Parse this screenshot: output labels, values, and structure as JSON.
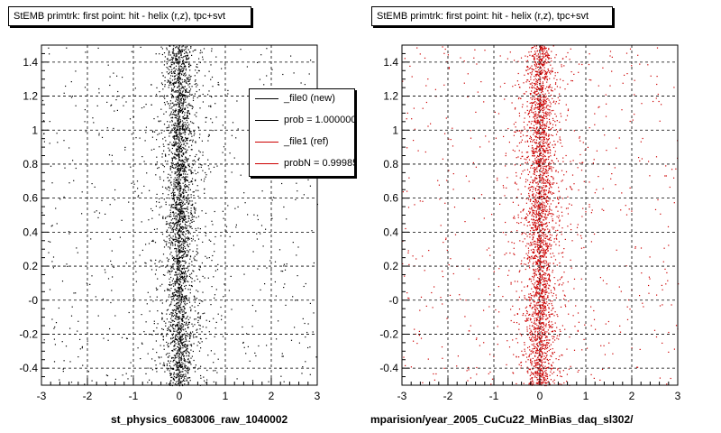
{
  "colors": {
    "new": "#000000",
    "ref": "#cc0000",
    "grid": "#000000",
    "frame": "#000000"
  },
  "left_panel": {
    "title": "StEMB primtrk: first point: hit - helix (r,z), tpc+svt",
    "x_name": "st_physics_6083006_raw_1040002"
  },
  "right_panel": {
    "title": "StEMB primtrk: first point: hit - helix (r,z), tpc+svt",
    "x_name": "mparision/year_2005_CuCu22_MinBias_daq_sl302/"
  },
  "legend": {
    "entries": [
      {
        "label": "_file0 (new)",
        "color": "#000000"
      },
      {
        "label": "prob = 1.000000",
        "color": "#000000"
      },
      {
        "label": "_file1 (ref)",
        "color": "#cc0000"
      },
      {
        "label": "probN = 0.99985",
        "color": "#cc0000"
      }
    ]
  },
  "footer": "",
  "chart_data": [
    {
      "type": "scatter",
      "title": "StEMB primtrk: first point: hit - helix (r,z), tpc+svt",
      "xlabel": "st_physics_6083006_raw_1040002",
      "ylabel": "",
      "xlim": [
        -3,
        3
      ],
      "ylim": [
        -0.5,
        1.5
      ],
      "grid": true,
      "x_ticks": [
        "-3",
        "-2",
        "-1",
        "0",
        "1",
        "2",
        "3"
      ],
      "y_ticks": [
        "-0.4",
        "-0.2",
        "-0",
        "0.2",
        "0.4",
        "0.6",
        "0.8",
        "1",
        "1.2",
        "1.4"
      ],
      "y_tick_values": [
        -0.4,
        -0.2,
        0,
        0.2,
        0.4,
        0.6,
        0.8,
        1.0,
        1.2,
        1.4
      ],
      "series": [
        {
          "name": "_file0 (new)",
          "color": "#000000",
          "distribution": "dense band centered at x=0, core width ~0.3, tails out to |x|~3"
        }
      ],
      "legend": "top-right"
    },
    {
      "type": "scatter",
      "title": "StEMB primtrk: first point: hit - helix (r,z), tpc+svt",
      "xlabel": "mparision/year_2005_CuCu22_MinBias_daq_sl302/",
      "ylabel": "",
      "xlim": [
        -3,
        3
      ],
      "ylim": [
        -0.5,
        1.5
      ],
      "grid": true,
      "x_ticks": [
        "-3",
        "-2",
        "-1",
        "0",
        "1",
        "2",
        "3"
      ],
      "y_ticks": [
        "-0.4",
        "-0.2",
        "-0",
        "0.2",
        "0.4",
        "0.6",
        "0.8",
        "1",
        "1.2",
        "1.4"
      ],
      "y_tick_values": [
        -0.4,
        -0.2,
        0,
        0.2,
        0.4,
        0.6,
        0.8,
        1.0,
        1.2,
        1.4
      ],
      "series": [
        {
          "name": "_file1 (ref)",
          "color": "#cc0000",
          "distribution": "dense band centered at x=0, core width ~0.3, tails out to |x|~3"
        }
      ]
    }
  ]
}
